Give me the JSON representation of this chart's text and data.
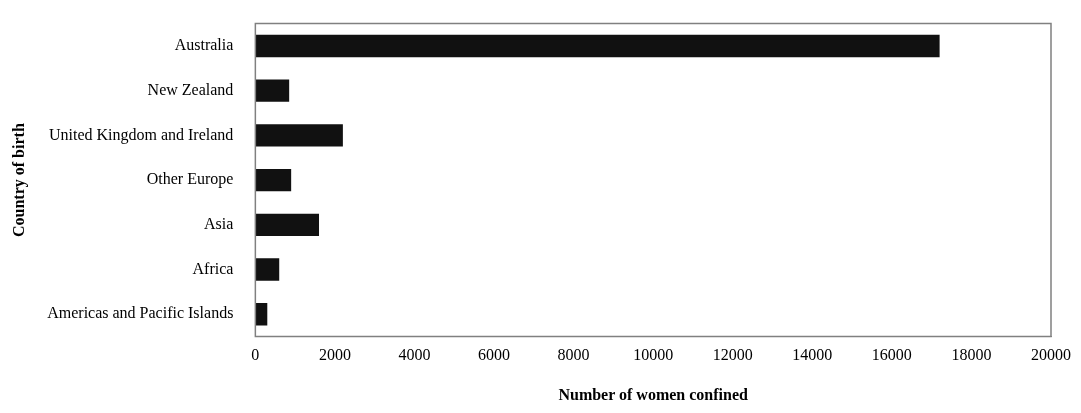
{
  "chart_data": {
    "type": "bar",
    "orientation": "horizontal",
    "categories": [
      "Australia",
      "New Zealand",
      "United Kingdom and Ireland",
      "Other Europe",
      "Asia",
      "Africa",
      "Americas and Pacific Islands"
    ],
    "values": [
      17200,
      850,
      2200,
      900,
      1600,
      600,
      300
    ],
    "color": "#111111",
    "xlim": [
      0,
      20000
    ],
    "xticks": [
      0,
      2000,
      4000,
      6000,
      8000,
      10000,
      12000,
      14000,
      16000,
      18000,
      20000
    ],
    "xlabel": "Number of women confined",
    "ylabel": "Country of birth",
    "grid": false,
    "legend": false
  }
}
